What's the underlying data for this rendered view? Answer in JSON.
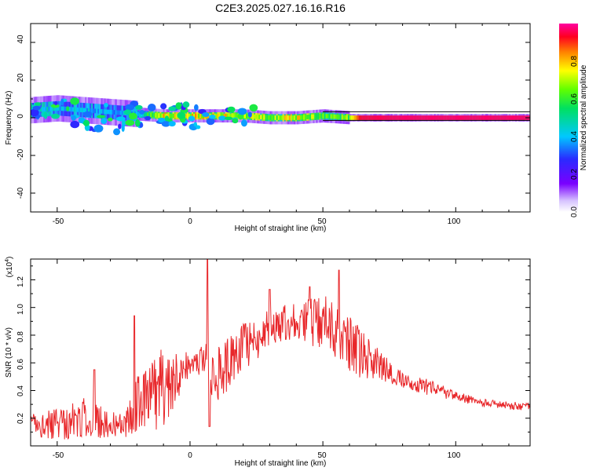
{
  "title": "C2E3.2025.027.16.16.R16",
  "chart_data": [
    {
      "type": "heatmap",
      "xlabel": "Height of straight line (km)",
      "ylabel": "Frequency (Hz)",
      "xlim": [
        -60,
        128
      ],
      "ylim": [
        -50,
        50
      ],
      "xticks": [
        "-50",
        "0",
        "50",
        "100"
      ],
      "yticks": [
        "40",
        "20",
        "0",
        "-20",
        "-40"
      ],
      "colorbar": {
        "label": "Normalized spectral amplitude",
        "range": [
          0,
          1
        ],
        "ticks": [
          "0.0",
          "0.2",
          "0.4",
          "0.6",
          "0.8"
        ]
      },
      "ridge": [
        {
          "x": -60,
          "f": 4,
          "a": 0.5
        },
        {
          "x": -50,
          "f": 5,
          "a": 0.45
        },
        {
          "x": -40,
          "f": 4,
          "a": 0.45
        },
        {
          "x": -30,
          "f": 3,
          "a": 0.4
        },
        {
          "x": -20,
          "f": 2,
          "a": 0.45
        },
        {
          "x": -10,
          "f": 1,
          "a": 0.85
        },
        {
          "x": 0,
          "f": 1,
          "a": 0.8
        },
        {
          "x": 10,
          "f": 1,
          "a": 0.85
        },
        {
          "x": 20,
          "f": 1,
          "a": 0.75
        },
        {
          "x": 30,
          "f": 0,
          "a": 0.75
        },
        {
          "x": 40,
          "f": 0,
          "a": 0.8
        },
        {
          "x": 50,
          "f": 1,
          "a": 0.65
        },
        {
          "x": 60,
          "f": 0,
          "a": 0.7
        },
        {
          "x": 64,
          "f": 0,
          "a": 0.95
        },
        {
          "x": 80,
          "f": 0,
          "a": 0.97
        },
        {
          "x": 100,
          "f": 0,
          "a": 0.97
        },
        {
          "x": 128,
          "f": 0,
          "a": 0.97
        }
      ]
    },
    {
      "type": "line",
      "xlabel": "Height of straight line (km)",
      "ylabel": "SNR (10 * v/v)",
      "yscale_label": "(x10",
      "yscale_exp": "4",
      "xlim": [
        -60,
        128
      ],
      "ylim": [
        0,
        1.35
      ],
      "xticks": [
        "-50",
        "0",
        "50",
        "100"
      ],
      "yticks": [
        "0.2",
        "0.4",
        "0.6",
        "0.8",
        "1.0",
        "1.2"
      ],
      "color": "#e8272a",
      "trend": [
        {
          "x": -60,
          "y": 0.16,
          "n": 0.08
        },
        {
          "x": -50,
          "y": 0.16,
          "n": 0.12
        },
        {
          "x": -40,
          "y": 0.2,
          "n": 0.15
        },
        {
          "x": -30,
          "y": 0.16,
          "n": 0.1
        },
        {
          "x": -25,
          "y": 0.14,
          "n": 0.08
        },
        {
          "x": -20,
          "y": 0.3,
          "n": 0.22
        },
        {
          "x": -10,
          "y": 0.42,
          "n": 0.3
        },
        {
          "x": 0,
          "y": 0.6,
          "n": 0.08
        },
        {
          "x": 5,
          "y": 0.62,
          "n": 0.12
        },
        {
          "x": 10,
          "y": 0.5,
          "n": 0.22
        },
        {
          "x": 20,
          "y": 0.7,
          "n": 0.18
        },
        {
          "x": 30,
          "y": 0.85,
          "n": 0.14
        },
        {
          "x": 40,
          "y": 0.92,
          "n": 0.14
        },
        {
          "x": 50,
          "y": 0.88,
          "n": 0.22
        },
        {
          "x": 60,
          "y": 0.72,
          "n": 0.22
        },
        {
          "x": 70,
          "y": 0.6,
          "n": 0.12
        },
        {
          "x": 80,
          "y": 0.47,
          "n": 0.06
        },
        {
          "x": 90,
          "y": 0.42,
          "n": 0.06
        },
        {
          "x": 100,
          "y": 0.36,
          "n": 0.04
        },
        {
          "x": 110,
          "y": 0.31,
          "n": 0.03
        },
        {
          "x": 128,
          "y": 0.28,
          "n": 0.03
        }
      ],
      "spikes": [
        {
          "x": 6.5,
          "y": 1.35
        },
        {
          "x": 7.3,
          "y": 0.14
        },
        {
          "x": 56,
          "y": 1.27
        },
        {
          "x": 45,
          "y": 1.15
        },
        {
          "x": 30,
          "y": 1.13
        },
        {
          "x": -21,
          "y": 0.94
        },
        {
          "x": -36,
          "y": 0.55
        }
      ]
    }
  ]
}
